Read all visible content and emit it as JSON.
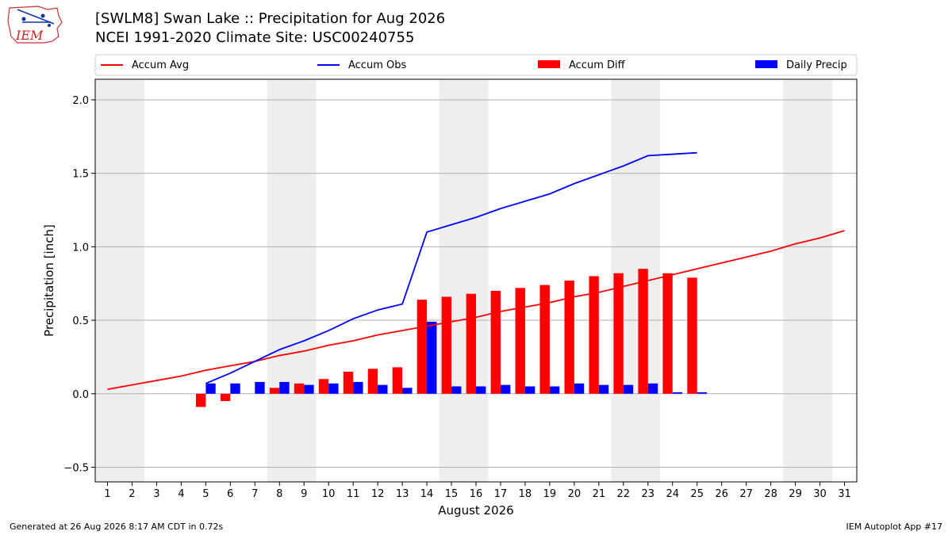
{
  "title_line1": "[SWLM8] Swan Lake :: Precipitation for Aug 2026",
  "title_line2": "NCEI 1991-2020 Climate Site: USC00240755",
  "logo_text": "IEM",
  "footer_left": "Generated at 26 Aug 2026 8:17 AM CDT in 0.72s",
  "footer_right": "IEM Autoplot App #17",
  "colors": {
    "accum_avg": "#ff0000",
    "accum_obs": "#0000ff",
    "accum_diff": "#ff0000",
    "daily_precip": "#0000ff",
    "weekend_shade": "#eeeeee",
    "grid": "#b0b0b0"
  },
  "chart_data": {
    "type": "bar",
    "xlabel": "August 2026",
    "ylabel": "Precipitation [inch]",
    "xlim": [
      0.5,
      31.5
    ],
    "ylim": [
      -0.6,
      2.14
    ],
    "yticks": [
      -0.5,
      0.0,
      0.5,
      1.0,
      1.5,
      2.0
    ],
    "ytick_labels": [
      "−0.5",
      "0.0",
      "0.5",
      "1.0",
      "1.5",
      "2.0"
    ],
    "x": [
      1,
      2,
      3,
      4,
      5,
      6,
      7,
      8,
      9,
      10,
      11,
      12,
      13,
      14,
      15,
      16,
      17,
      18,
      19,
      20,
      21,
      22,
      23,
      24,
      25,
      26,
      27,
      28,
      29,
      30,
      31
    ],
    "xtick_labels": [
      "1",
      "2",
      "3",
      "4",
      "5",
      "6",
      "7",
      "8",
      "9",
      "10",
      "11",
      "12",
      "13",
      "14",
      "15",
      "16",
      "17",
      "18",
      "19",
      "20",
      "21",
      "22",
      "23",
      "24",
      "25",
      "26",
      "27",
      "28",
      "29",
      "30",
      "31"
    ],
    "weekend_days": [
      1,
      2,
      8,
      9,
      15,
      16,
      22,
      23,
      29,
      30
    ],
    "grid": true,
    "legend_position": "top",
    "series": [
      {
        "name": "Accum Avg",
        "kind": "line",
        "x": [
          1,
          2,
          3,
          4,
          5,
          6,
          7,
          8,
          9,
          10,
          11,
          12,
          13,
          14,
          15,
          16,
          17,
          18,
          19,
          20,
          21,
          22,
          23,
          24,
          25,
          26,
          27,
          28,
          29,
          30,
          31
        ],
        "values": [
          0.03,
          0.06,
          0.09,
          0.12,
          0.16,
          0.19,
          0.22,
          0.26,
          0.29,
          0.33,
          0.36,
          0.4,
          0.43,
          0.46,
          0.49,
          0.52,
          0.56,
          0.59,
          0.62,
          0.66,
          0.69,
          0.73,
          0.77,
          0.81,
          0.85,
          0.89,
          0.93,
          0.97,
          1.02,
          1.06,
          1.11
        ]
      },
      {
        "name": "Accum Obs",
        "kind": "line",
        "x": [
          5,
          6,
          7,
          8,
          9,
          10,
          11,
          12,
          13,
          14,
          15,
          16,
          17,
          18,
          19,
          20,
          21,
          22,
          23,
          24,
          25
        ],
        "values": [
          0.07,
          0.14,
          0.22,
          0.3,
          0.36,
          0.43,
          0.51,
          0.57,
          0.61,
          1.1,
          1.15,
          1.2,
          1.26,
          1.31,
          1.36,
          1.43,
          1.49,
          1.55,
          1.62,
          1.63,
          1.64
        ]
      },
      {
        "name": "Accum Diff",
        "kind": "bar",
        "x": [
          5,
          6,
          7,
          8,
          9,
          10,
          11,
          12,
          13,
          14,
          15,
          16,
          17,
          18,
          19,
          20,
          21,
          22,
          23,
          24,
          25
        ],
        "values": [
          -0.09,
          -0.05,
          0.0,
          0.04,
          0.07,
          0.1,
          0.15,
          0.17,
          0.18,
          0.64,
          0.66,
          0.68,
          0.7,
          0.72,
          0.74,
          0.77,
          0.8,
          0.82,
          0.85,
          0.82,
          0.79
        ]
      },
      {
        "name": "Daily Precip",
        "kind": "bar",
        "x": [
          5,
          6,
          7,
          8,
          9,
          10,
          11,
          12,
          13,
          14,
          15,
          16,
          17,
          18,
          19,
          20,
          21,
          22,
          23,
          24,
          25
        ],
        "values": [
          0.07,
          0.07,
          0.08,
          0.08,
          0.06,
          0.07,
          0.08,
          0.06,
          0.04,
          0.49,
          0.05,
          0.05,
          0.06,
          0.05,
          0.05,
          0.07,
          0.06,
          0.06,
          0.07,
          0.01,
          0.01
        ]
      }
    ]
  }
}
